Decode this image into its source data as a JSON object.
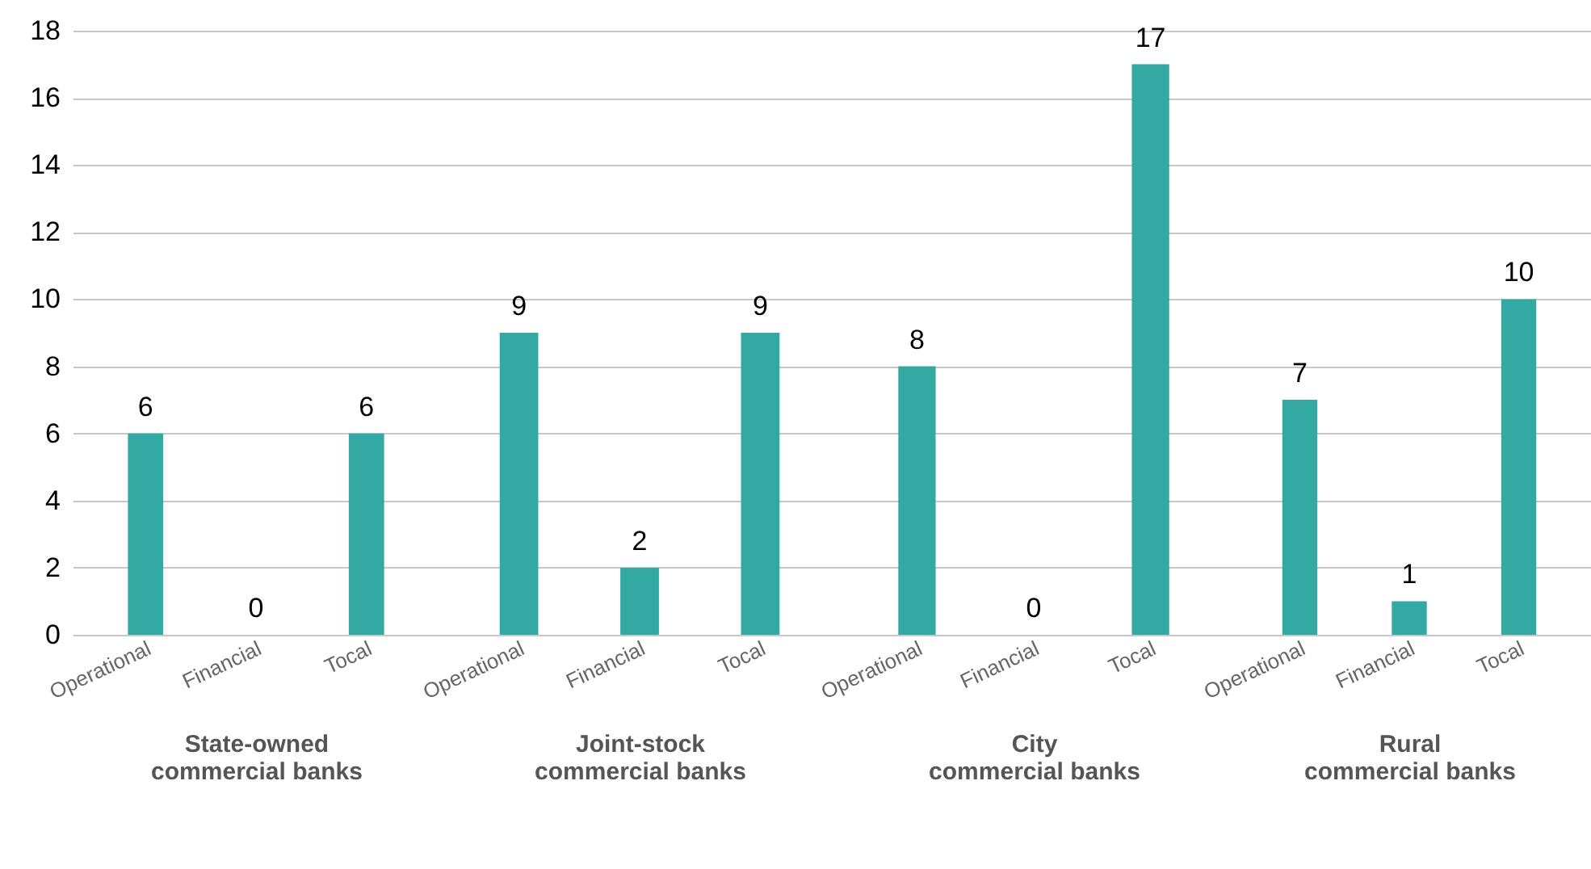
{
  "chart_data": [
    {
      "type": "bar",
      "xlabel": "State-owned\ncommercial banks",
      "categories": [
        "Operational",
        "Financial",
        "Tocal"
      ],
      "values": [
        6,
        0,
        6
      ],
      "color": "#32a9a3",
      "ylim": [
        0,
        18
      ],
      "yticks": [
        0,
        2,
        4,
        6,
        8,
        10,
        12,
        14,
        16,
        18
      ],
      "grid": "y",
      "data_labels": true
    },
    {
      "type": "bar",
      "xlabel": "Joint-stock\ncommercial banks",
      "categories": [
        "Operational",
        "Financial",
        "Tocal"
      ],
      "values": [
        9,
        2,
        9
      ],
      "color": "#32a9a3",
      "ylim": [
        0,
        18
      ],
      "yticks": [
        0,
        2,
        4,
        6,
        8,
        10,
        12,
        14,
        16,
        18
      ],
      "grid": "y",
      "data_labels": true,
      "tick_labels": "x"
    },
    {
      "type": "bar",
      "xlabel": "City\ncommercial banks",
      "categories": [
        "Operational",
        "Financial",
        "Tocal"
      ],
      "values": [
        8,
        0,
        17
      ],
      "color": "#32a9a3",
      "ylim": [
        0,
        18
      ],
      "yticks": [
        0,
        2,
        4,
        6,
        8,
        10,
        12,
        14,
        16,
        18
      ],
      "grid": "y",
      "data_labels": true,
      "tick_labels": "x"
    },
    {
      "type": "bar",
      "xlabel": "Rural\ncommercial banks",
      "categories": [
        "Operational",
        "Financial",
        "Tocal"
      ],
      "values": [
        7,
        1,
        10
      ],
      "color": "#32a9a3",
      "ylim": [
        0,
        18
      ],
      "yticks": [
        0,
        2,
        4,
        6,
        8,
        10,
        12,
        14,
        16,
        18
      ],
      "grid": "y",
      "data_labels": true,
      "tick_labels": "x"
    }
  ]
}
